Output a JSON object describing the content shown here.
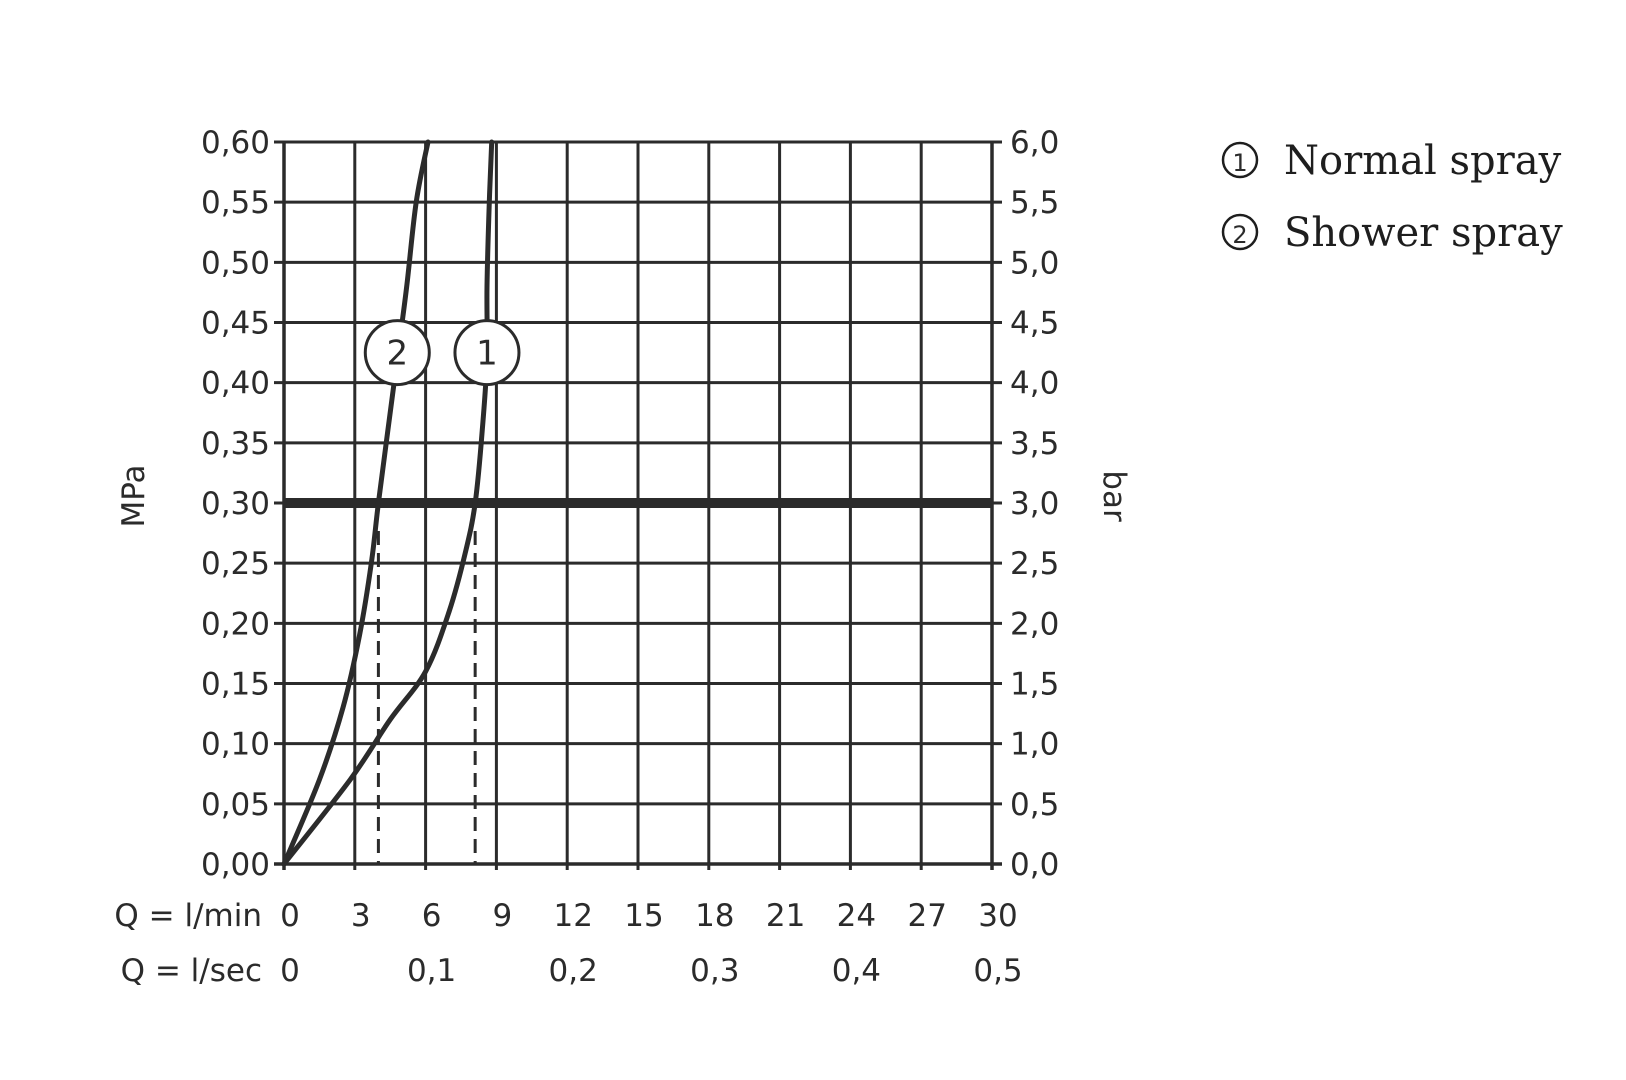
{
  "chart_data": {
    "type": "line",
    "xlabel_rows": [
      {
        "label": "Q = l/min",
        "ticks": [
          "0",
          "3",
          "6",
          "9",
          "12",
          "15",
          "18",
          "21",
          "24",
          "27",
          "30"
        ],
        "tick_values": [
          0,
          3,
          6,
          9,
          12,
          15,
          18,
          21,
          24,
          27,
          30
        ]
      },
      {
        "label": "Q = l/sec",
        "ticks": [
          "0",
          "0,1",
          "0,2",
          "0,3",
          "0,4",
          "0,5"
        ],
        "tick_values": [
          0,
          6,
          12,
          18,
          24,
          30
        ]
      }
    ],
    "xlim": [
      0,
      30
    ],
    "x_grid": [
      0,
      3,
      6,
      9,
      12,
      15,
      18,
      21,
      24,
      27,
      30
    ],
    "ylabel_left": "MPa",
    "ylabel_right": "bar",
    "ylim": [
      0,
      0.6
    ],
    "y_ticks_left": [
      "0,00",
      "0,05",
      "0,10",
      "0,15",
      "0,20",
      "0,25",
      "0,30",
      "0,35",
      "0,40",
      "0,45",
      "0,50",
      "0,55",
      "0,60"
    ],
    "y_ticks_right": [
      "0,0",
      "0,5",
      "1,0",
      "1,5",
      "2,0",
      "2,5",
      "3,0",
      "3,5",
      "4,0",
      "4,5",
      "5,0",
      "5,5",
      "6,0"
    ],
    "y_tick_values": [
      0,
      0.05,
      0.1,
      0.15,
      0.2,
      0.25,
      0.3,
      0.35,
      0.4,
      0.45,
      0.5,
      0.55,
      0.6
    ],
    "grid": true,
    "reference_line": {
      "y": 0.3
    },
    "series": [
      {
        "name": "Normal spray",
        "marker": "1",
        "marker_at": [
          8.6,
          0.425
        ],
        "dashed_drop_x": 8.1,
        "points": [
          [
            0,
            0
          ],
          [
            2.8,
            0.07
          ],
          [
            4.5,
            0.12
          ],
          [
            6,
            0.16
          ],
          [
            7,
            0.21
          ],
          [
            7.7,
            0.26
          ],
          [
            8.1,
            0.3
          ],
          [
            8.4,
            0.36
          ],
          [
            8.6,
            0.42
          ],
          [
            8.6,
            0.48
          ],
          [
            8.7,
            0.55
          ],
          [
            8.8,
            0.6
          ]
        ]
      },
      {
        "name": "Shower spray",
        "marker": "2",
        "marker_at": [
          4.8,
          0.425
        ],
        "dashed_drop_x": 4.0,
        "points": [
          [
            0,
            0
          ],
          [
            1.5,
            0.07
          ],
          [
            2.5,
            0.13
          ],
          [
            3.2,
            0.19
          ],
          [
            3.7,
            0.25
          ],
          [
            4.0,
            0.3
          ],
          [
            4.4,
            0.36
          ],
          [
            4.8,
            0.42
          ],
          [
            5.2,
            0.48
          ],
          [
            5.6,
            0.55
          ],
          [
            6.1,
            0.6
          ]
        ]
      }
    ],
    "legend": {
      "placement": "top-right",
      "items": [
        {
          "symbol": "1",
          "label": "Normal spray"
        },
        {
          "symbol": "2",
          "label": "Shower spray"
        }
      ]
    },
    "colors": {
      "line": "#2b2b2b",
      "grid": "#2b2b2b",
      "background": "#ffffff"
    }
  }
}
